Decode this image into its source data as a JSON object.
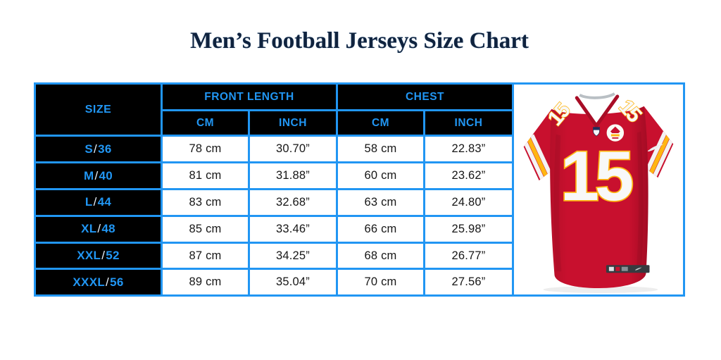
{
  "page_title": "Men’s Football Jerseys Size Chart",
  "colors": {
    "accent_blue": "#2196F3",
    "cell_black": "#000000",
    "title_navy": "#10233E",
    "jersey_red": "#C8102E",
    "jersey_gold": "#FFB612"
  },
  "chart_data": {
    "type": "table",
    "title": "Men’s Football Jerseys Size Chart",
    "size_column_label": "SIZE",
    "column_groups": [
      {
        "label": "FRONT LENGTH",
        "subcolumns": [
          "CM",
          "INCH"
        ]
      },
      {
        "label": "CHEST",
        "subcolumns": [
          "CM",
          "INCH"
        ]
      }
    ],
    "subheaders": [
      "CM",
      "INCH",
      "CM",
      "INCH"
    ],
    "rows": [
      {
        "size": "S/36",
        "front_length_cm": "78 cm",
        "front_length_inch": "30.70”",
        "chest_cm": "58 cm",
        "chest_inch": "22.83”"
      },
      {
        "size": "M/40",
        "front_length_cm": "81 cm",
        "front_length_inch": "31.88”",
        "chest_cm": "60 cm",
        "chest_inch": "23.62”"
      },
      {
        "size": "L/44",
        "front_length_cm": "83 cm",
        "front_length_inch": "32.68”",
        "chest_cm": "63 cm",
        "chest_inch": "24.80”"
      },
      {
        "size": "XL/48",
        "front_length_cm": "85 cm",
        "front_length_inch": "33.46”",
        "chest_cm": "66 cm",
        "chest_inch": "25.98”"
      },
      {
        "size": "XXL/52",
        "front_length_cm": "87 cm",
        "front_length_inch": "34.25”",
        "chest_cm": "68 cm",
        "chest_inch": "26.77”"
      },
      {
        "size": "XXXL/56",
        "front_length_cm": "89 cm",
        "front_length_inch": "35.04”",
        "chest_cm": "70 cm",
        "chest_inch": "27.56”"
      }
    ]
  },
  "jersey_image": {
    "chest_number": "15",
    "shoulder_number": "15"
  }
}
